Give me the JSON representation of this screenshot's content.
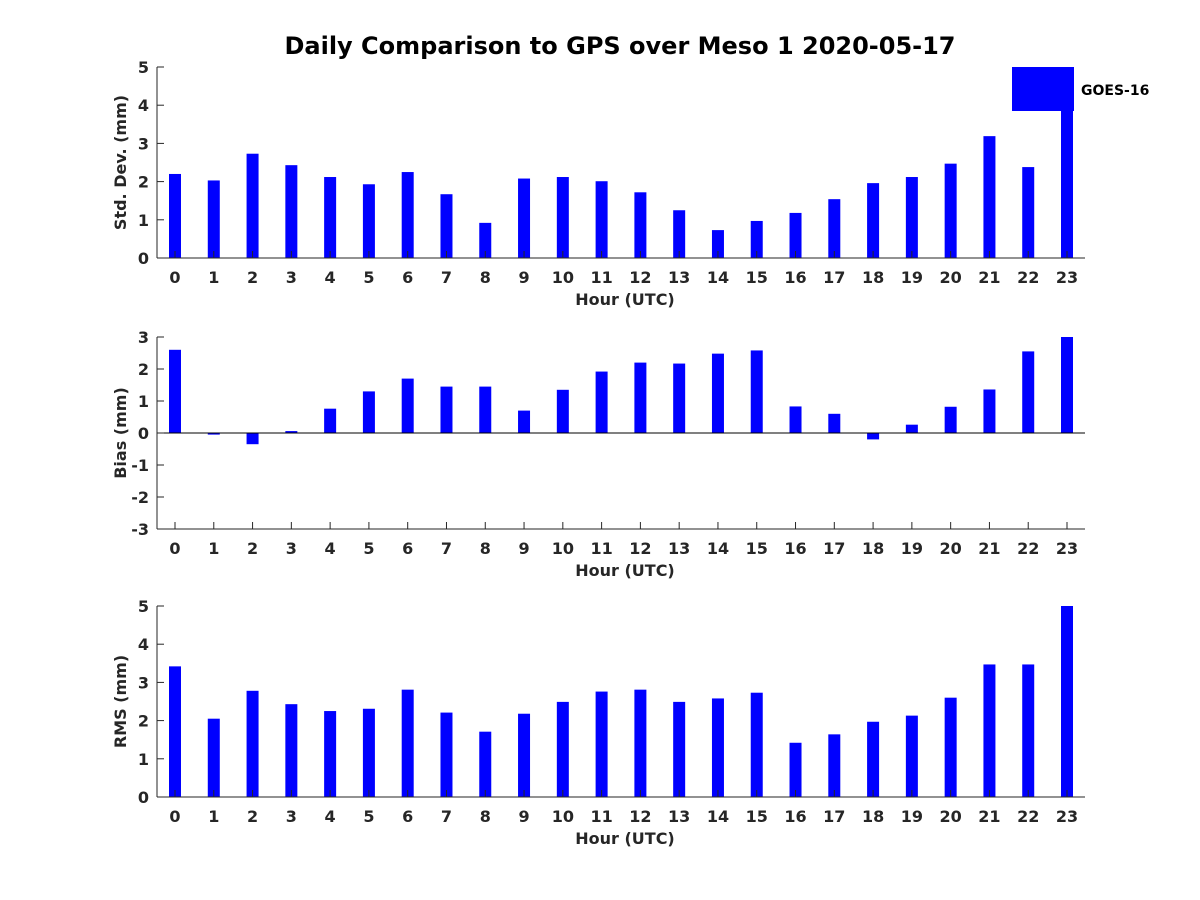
{
  "title": "Daily Comparison to GPS over Meso 1 2020-05-17",
  "legend": {
    "label": "GOES-16",
    "color": "#0000ff"
  },
  "chart_data": [
    {
      "type": "bar",
      "xlabel": "Hour (UTC)",
      "ylabel": "Std. Dev. (mm)",
      "ylim": [
        0,
        5
      ],
      "yticks": [
        0,
        1,
        2,
        3,
        4,
        5
      ],
      "grid": false,
      "categories": [
        "0",
        "1",
        "2",
        "3",
        "4",
        "5",
        "6",
        "7",
        "8",
        "9",
        "10",
        "11",
        "12",
        "13",
        "14",
        "15",
        "16",
        "17",
        "18",
        "19",
        "20",
        "21",
        "22",
        "23"
      ],
      "series": [
        {
          "name": "GOES-16",
          "values": [
            2.2,
            2.03,
            2.73,
            2.43,
            2.12,
            1.93,
            2.25,
            1.67,
            0.92,
            2.08,
            2.12,
            2.01,
            1.72,
            1.25,
            0.73,
            0.97,
            1.18,
            1.54,
            1.96,
            2.12,
            2.47,
            3.19,
            2.38,
            5.0
          ]
        }
      ],
      "color": "#0000ff"
    },
    {
      "type": "bar",
      "xlabel": "Hour (UTC)",
      "ylabel": "Bias (mm)",
      "ylim": [
        -3,
        3
      ],
      "yticks": [
        -3,
        -2,
        -1,
        0,
        1,
        2,
        3
      ],
      "grid": false,
      "categories": [
        "0",
        "1",
        "2",
        "3",
        "4",
        "5",
        "6",
        "7",
        "8",
        "9",
        "10",
        "11",
        "12",
        "13",
        "14",
        "15",
        "16",
        "17",
        "18",
        "19",
        "20",
        "21",
        "22",
        "23"
      ],
      "series": [
        {
          "name": "GOES-16",
          "values": [
            2.6,
            -0.05,
            -0.35,
            0.06,
            0.76,
            1.3,
            1.7,
            1.45,
            1.45,
            0.7,
            1.35,
            1.92,
            2.2,
            2.17,
            2.48,
            2.58,
            0.83,
            0.6,
            -0.2,
            0.26,
            0.82,
            1.36,
            2.55,
            3.0
          ]
        }
      ],
      "color": "#0000ff"
    },
    {
      "type": "bar",
      "xlabel": "Hour (UTC)",
      "ylabel": "RMS (mm)",
      "ylim": [
        0,
        5
      ],
      "yticks": [
        0,
        1,
        2,
        3,
        4,
        5
      ],
      "grid": false,
      "categories": [
        "0",
        "1",
        "2",
        "3",
        "4",
        "5",
        "6",
        "7",
        "8",
        "9",
        "10",
        "11",
        "12",
        "13",
        "14",
        "15",
        "16",
        "17",
        "18",
        "19",
        "20",
        "21",
        "22",
        "23"
      ],
      "series": [
        {
          "name": "GOES-16",
          "values": [
            3.42,
            2.05,
            2.78,
            2.43,
            2.25,
            2.31,
            2.81,
            2.21,
            1.71,
            2.18,
            2.49,
            2.76,
            2.81,
            2.49,
            2.58,
            2.73,
            1.42,
            1.64,
            1.97,
            2.13,
            2.6,
            3.47,
            3.47,
            5.0
          ]
        }
      ],
      "color": "#0000ff"
    }
  ]
}
